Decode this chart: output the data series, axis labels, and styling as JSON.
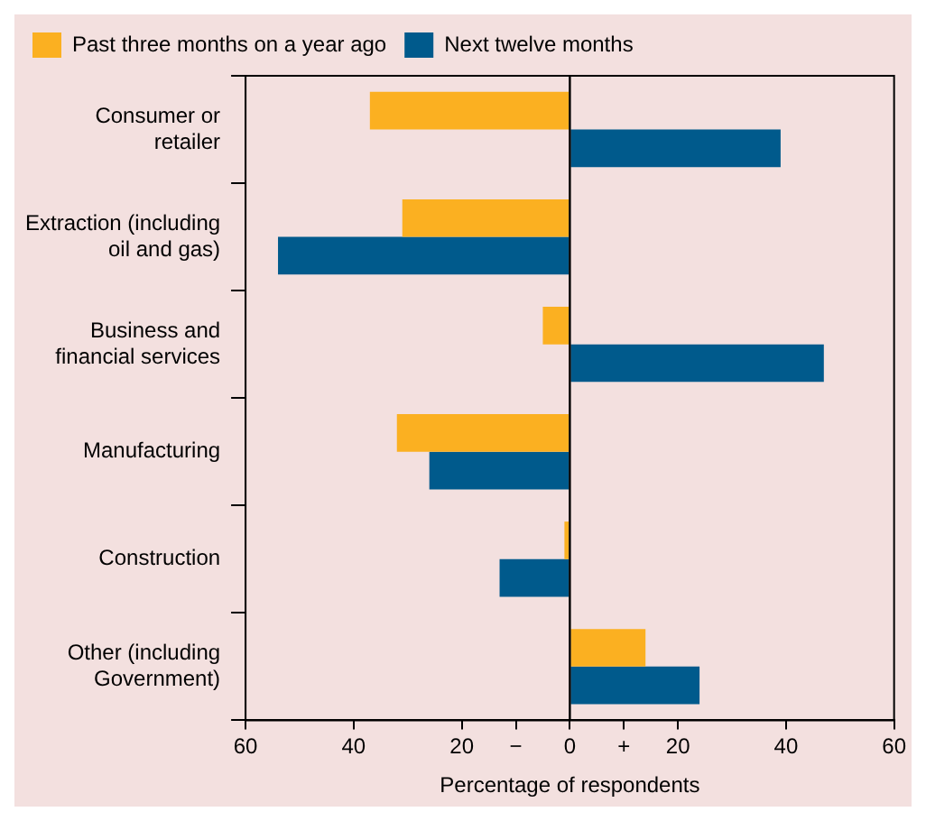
{
  "chart_data": {
    "type": "bar",
    "orientation": "horizontal",
    "xlabel": "Percentage of respondents",
    "categories": [
      "Consumer or retailer",
      "Extraction (including oil and gas)",
      "Business and financial services",
      "Manufacturing",
      "Construction",
      "Other (including Government)"
    ],
    "series": [
      {
        "name": "Past three months on a year ago",
        "color": "#fbb021",
        "values": [
          -37,
          -31,
          -5,
          -32,
          -1,
          14
        ]
      },
      {
        "name": "Next twelve months",
        "color": "#005a8c",
        "values": [
          39,
          -54,
          47,
          -26,
          -13,
          24
        ]
      }
    ],
    "xlim": [
      -60,
      60
    ],
    "xticks": [
      {
        "value": -60,
        "label": "60"
      },
      {
        "value": -40,
        "label": "40"
      },
      {
        "value": -20,
        "label": "20"
      },
      {
        "value": -10,
        "label": "−"
      },
      0,
      {
        "value": 10,
        "label": "+"
      },
      20,
      40,
      60
    ],
    "ref_lines": [
      {
        "axis": "x",
        "value": 0,
        "color": "#000000"
      }
    ],
    "grid": false,
    "legend": "top left"
  }
}
